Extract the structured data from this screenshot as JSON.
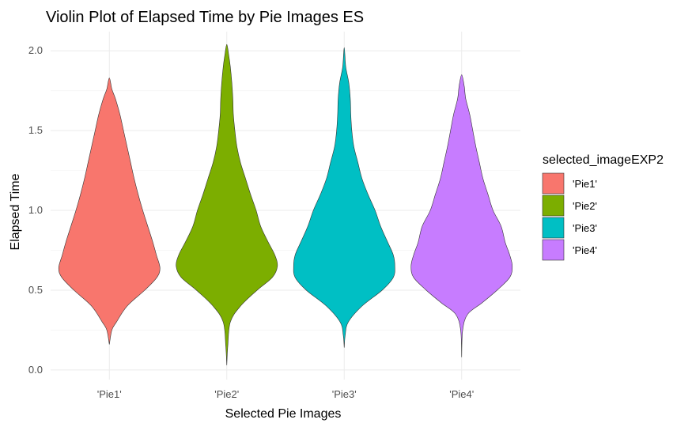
{
  "chart_data": {
    "type": "violin",
    "title": "Violin Plot of Elapsed Time by Pie Images ES",
    "xlabel": "Selected Pie Images",
    "ylabel": "Elapsed Time",
    "categories": [
      "'Pie1'",
      "'Pie2'",
      "'Pie3'",
      "'Pie4'"
    ],
    "ylim": [
      -0.06,
      2.12
    ],
    "yticks": [
      0.0,
      0.5,
      1.0,
      1.5,
      2.0
    ],
    "ytick_labels": [
      "0.0",
      "0.5",
      "1.0",
      "1.5",
      "2.0"
    ],
    "grid": true,
    "legend": {
      "title": "selected_imageEXP2",
      "position": "right",
      "entries": [
        "'Pie1'",
        "'Pie2'",
        "'Pie3'",
        "'Pie4'"
      ]
    },
    "series": [
      {
        "category": "'Pie1'",
        "color": "#F8766D",
        "min": 0.16,
        "max": 1.83,
        "profile": [
          [
            0.16,
            0.0
          ],
          [
            0.25,
            0.05
          ],
          [
            0.3,
            0.14
          ],
          [
            0.4,
            0.35
          ],
          [
            0.5,
            0.7
          ],
          [
            0.58,
            0.94
          ],
          [
            0.64,
            1.0
          ],
          [
            0.72,
            0.93
          ],
          [
            0.8,
            0.86
          ],
          [
            0.9,
            0.76
          ],
          [
            1.0,
            0.66
          ],
          [
            1.1,
            0.57
          ],
          [
            1.2,
            0.49
          ],
          [
            1.3,
            0.42
          ],
          [
            1.4,
            0.35
          ],
          [
            1.5,
            0.28
          ],
          [
            1.6,
            0.21
          ],
          [
            1.7,
            0.12
          ],
          [
            1.76,
            0.05
          ],
          [
            1.83,
            0.0
          ]
        ]
      },
      {
        "category": "'Pie2'",
        "color": "#7CAE00",
        "min": 0.03,
        "max": 2.04,
        "profile": [
          [
            0.03,
            0.0
          ],
          [
            0.15,
            0.02
          ],
          [
            0.3,
            0.07
          ],
          [
            0.4,
            0.27
          ],
          [
            0.5,
            0.6
          ],
          [
            0.58,
            0.9
          ],
          [
            0.65,
            1.0
          ],
          [
            0.72,
            0.95
          ],
          [
            0.8,
            0.82
          ],
          [
            0.9,
            0.67
          ],
          [
            1.0,
            0.58
          ],
          [
            1.1,
            0.47
          ],
          [
            1.2,
            0.37
          ],
          [
            1.3,
            0.27
          ],
          [
            1.4,
            0.2
          ],
          [
            1.5,
            0.16
          ],
          [
            1.6,
            0.13
          ],
          [
            1.7,
            0.12
          ],
          [
            1.8,
            0.1
          ],
          [
            1.9,
            0.07
          ],
          [
            1.97,
            0.04
          ],
          [
            2.04,
            0.0
          ]
        ]
      },
      {
        "category": "'Pie3'",
        "color": "#00BFC4",
        "min": 0.14,
        "max": 2.02,
        "profile": [
          [
            0.14,
            0.0
          ],
          [
            0.22,
            0.02
          ],
          [
            0.3,
            0.08
          ],
          [
            0.4,
            0.35
          ],
          [
            0.5,
            0.75
          ],
          [
            0.58,
            0.97
          ],
          [
            0.65,
            1.0
          ],
          [
            0.72,
            0.97
          ],
          [
            0.8,
            0.86
          ],
          [
            0.9,
            0.72
          ],
          [
            1.0,
            0.61
          ],
          [
            1.1,
            0.47
          ],
          [
            1.2,
            0.35
          ],
          [
            1.3,
            0.27
          ],
          [
            1.4,
            0.19
          ],
          [
            1.5,
            0.15
          ],
          [
            1.6,
            0.13
          ],
          [
            1.7,
            0.12
          ],
          [
            1.8,
            0.09
          ],
          [
            1.9,
            0.03
          ],
          [
            2.02,
            0.0
          ]
        ]
      },
      {
        "category": "'Pie4'",
        "color": "#C77CFF",
        "min": 0.08,
        "max": 1.85,
        "profile": [
          [
            0.08,
            0.0
          ],
          [
            0.25,
            0.02
          ],
          [
            0.35,
            0.12
          ],
          [
            0.42,
            0.4
          ],
          [
            0.5,
            0.7
          ],
          [
            0.58,
            0.95
          ],
          [
            0.65,
            1.0
          ],
          [
            0.72,
            0.95
          ],
          [
            0.8,
            0.86
          ],
          [
            0.9,
            0.78
          ],
          [
            1.0,
            0.62
          ],
          [
            1.1,
            0.52
          ],
          [
            1.2,
            0.42
          ],
          [
            1.3,
            0.35
          ],
          [
            1.4,
            0.28
          ],
          [
            1.5,
            0.22
          ],
          [
            1.6,
            0.16
          ],
          [
            1.7,
            0.08
          ],
          [
            1.78,
            0.05
          ],
          [
            1.85,
            0.0
          ]
        ]
      }
    ]
  }
}
